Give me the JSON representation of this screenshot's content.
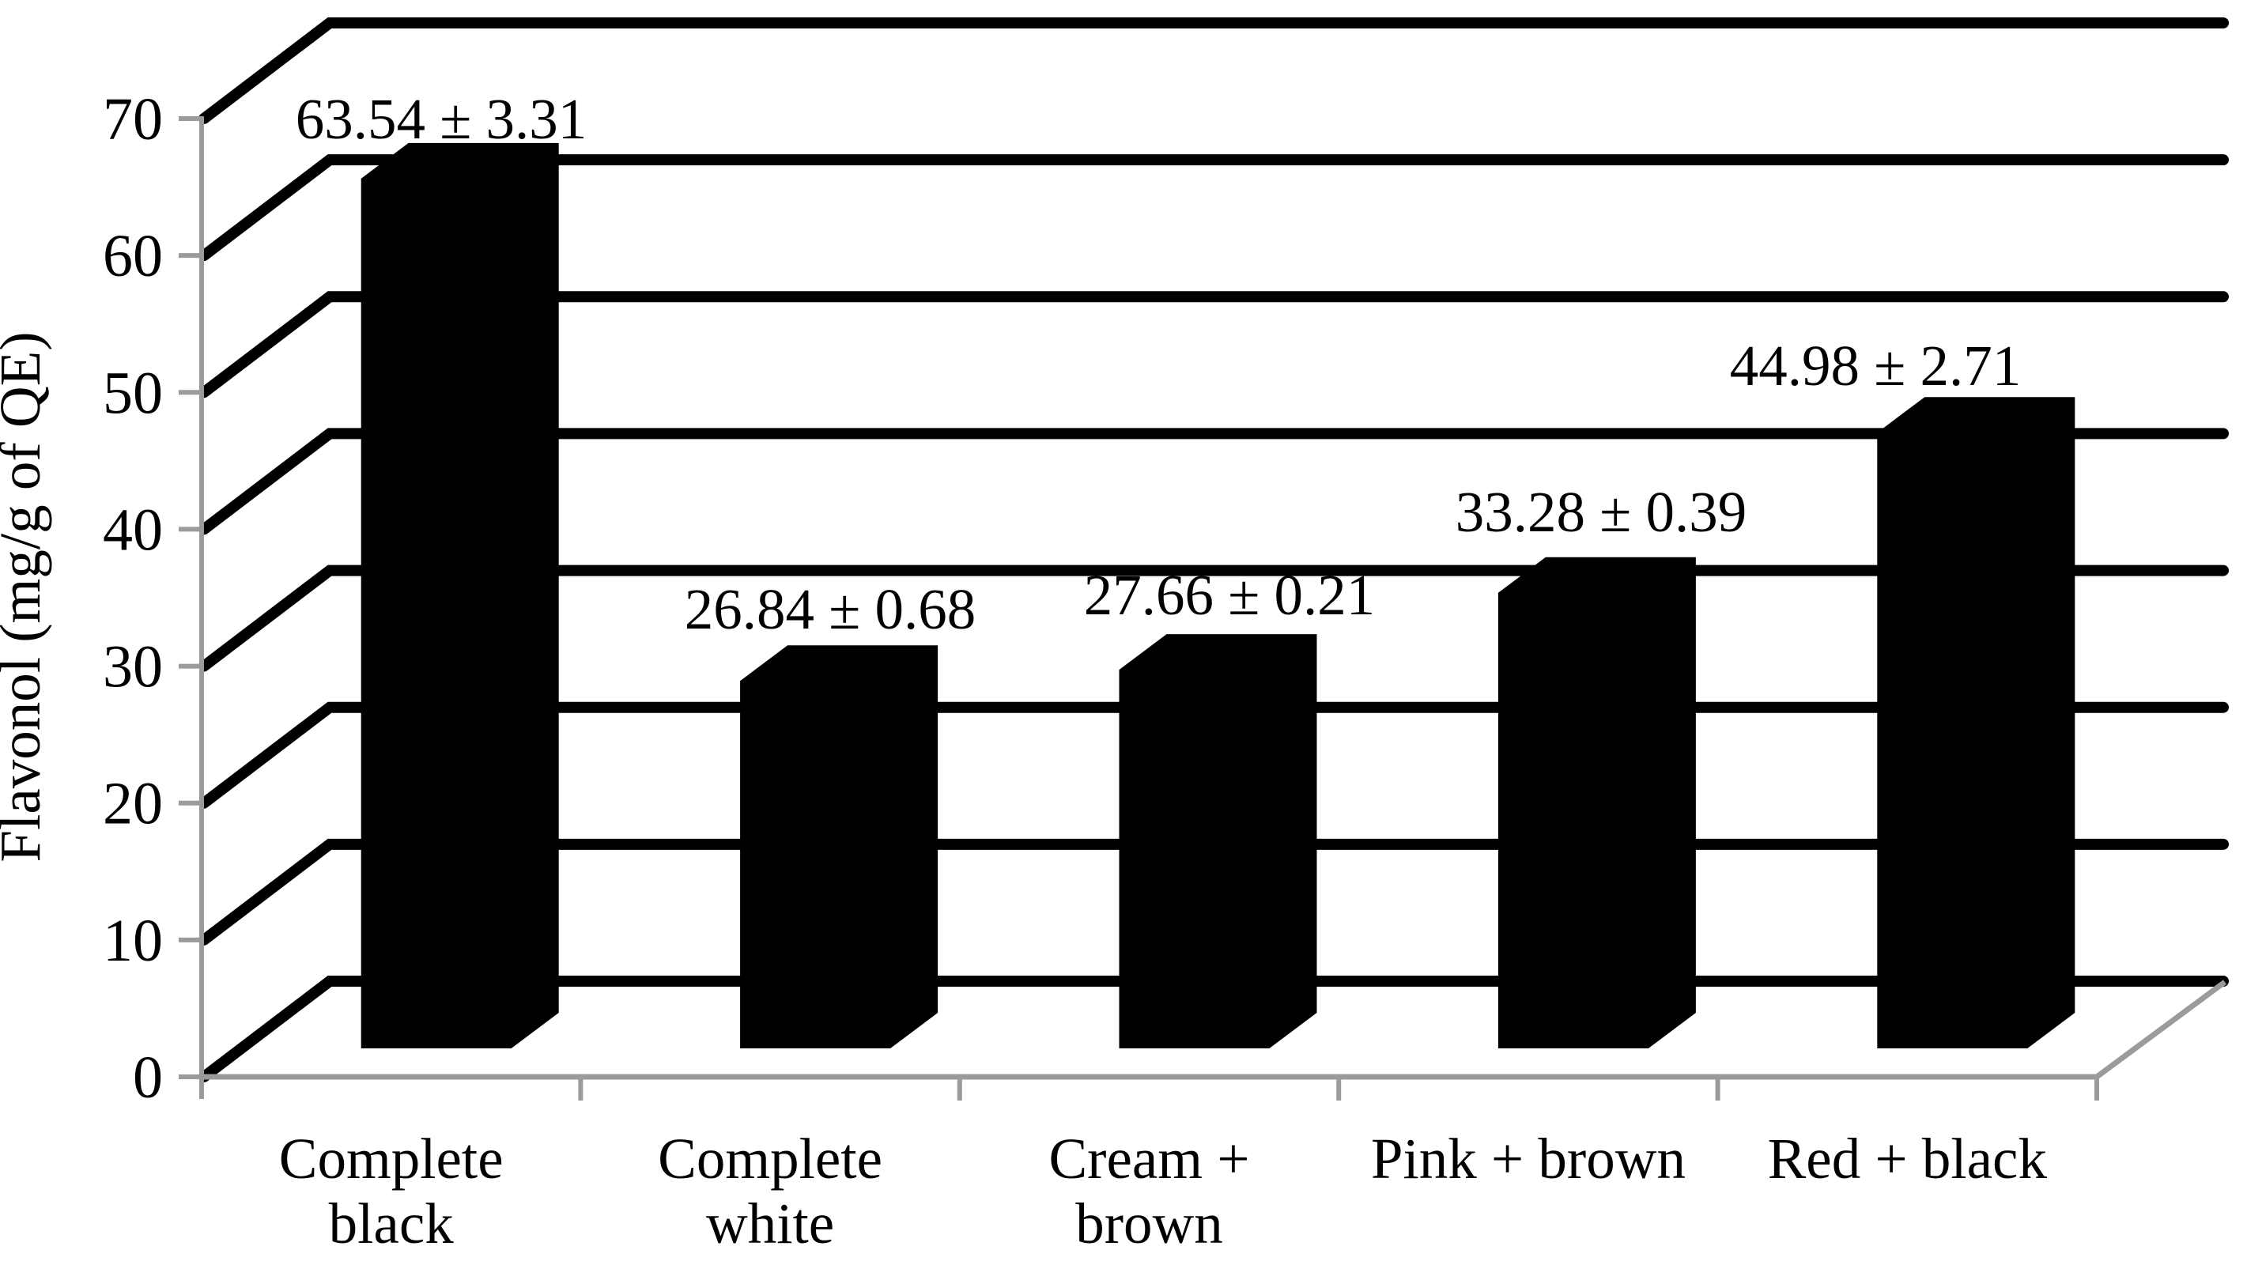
{
  "chart_data": {
    "type": "bar",
    "style": "3d-column-oblique",
    "title": "",
    "xlabel": "",
    "ylabel": "Flavonol (mg/g of QE)",
    "categories": [
      "Complete black",
      "Complete white",
      "Cream + brown",
      "Pink + brown",
      "Red + black"
    ],
    "category_label_lines": [
      [
        "Complete",
        "black"
      ],
      [
        "Complete",
        "white"
      ],
      [
        "Cream +",
        "brown"
      ],
      [
        "Pink + brown"
      ],
      [
        "Red + black"
      ]
    ],
    "series": [
      {
        "name": "Flavonol",
        "values": [
          63.54,
          26.84,
          27.66,
          33.28,
          44.98
        ],
        "errors": [
          3.31,
          0.68,
          0.21,
          0.39,
          2.71
        ]
      }
    ],
    "data_labels": [
      "63.54 ± 3.31",
      "26.84 ± 0.68",
      "27.66 ± 0.21",
      "33.28 ± 0.39",
      "44.98 ± 2.71"
    ],
    "ylim": [
      0,
      70
    ],
    "yticks": [
      0,
      10,
      20,
      30,
      40,
      50,
      60,
      70
    ],
    "ytick_labels": [
      "0",
      "10",
      "20",
      "30",
      "40",
      "50",
      "60",
      "70"
    ],
    "grid": "horizontal",
    "legend": "none",
    "bar_color": "#000000",
    "grid_color": "#000000",
    "axis_color": "#9b9b9b",
    "text_color": "#000000",
    "background_color": "#ffffff"
  }
}
